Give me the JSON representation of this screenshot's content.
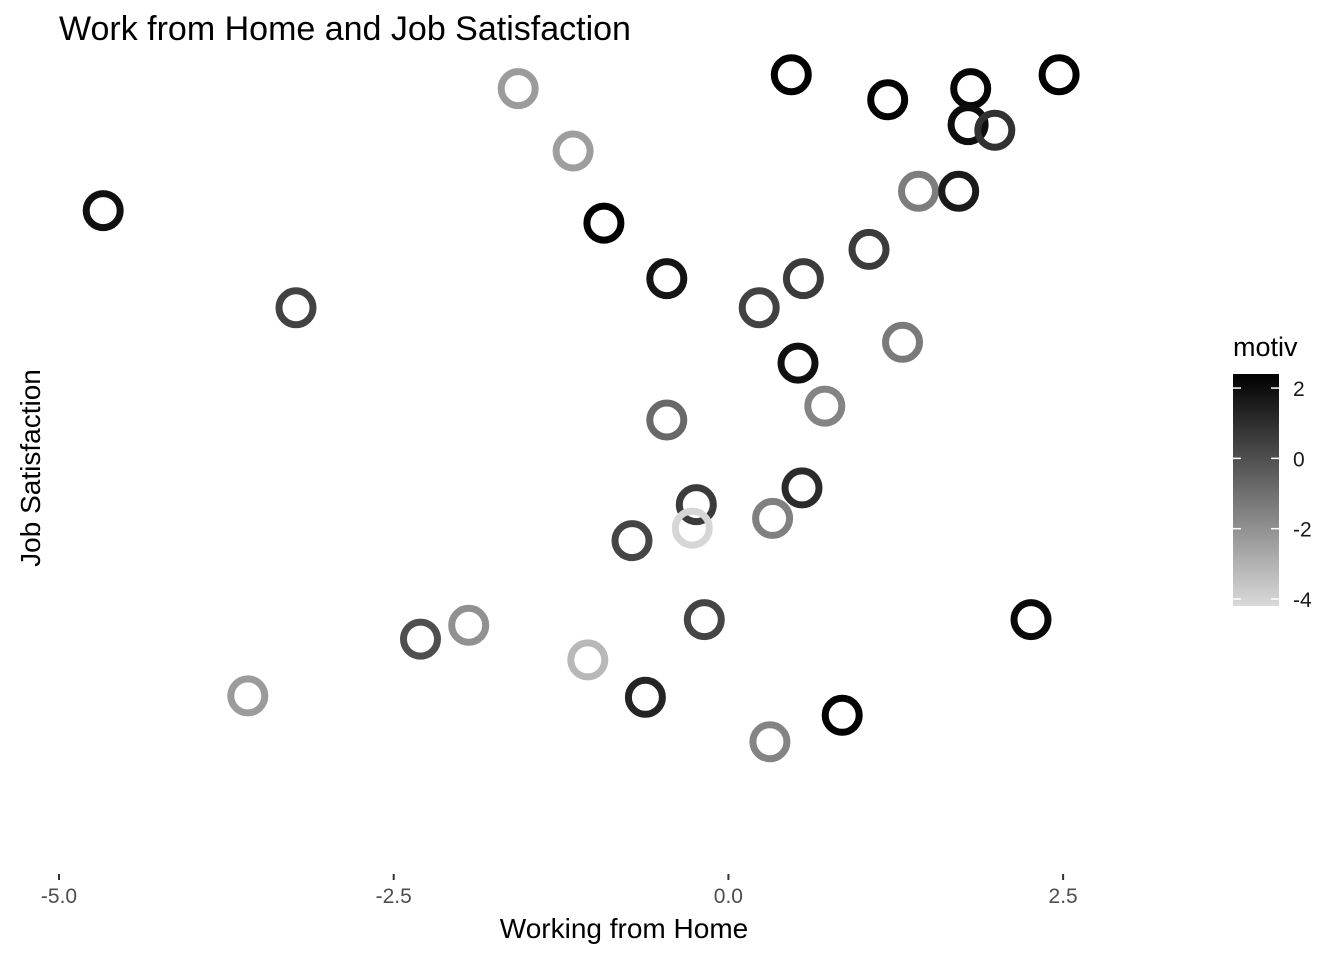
{
  "chart_data": {
    "type": "scatter",
    "title": "Work from Home and Job Satisfaction",
    "xlabel": "Working from Home",
    "ylabel": "Job Satisfaction",
    "xlim": [
      -5.0,
      3.5
    ],
    "ylim": [
      -3.45,
      2.5
    ],
    "x_ticks": [
      -5.0,
      -2.5,
      0.0,
      2.5
    ],
    "x_tick_labels": [
      "-5.0",
      "-2.5",
      "0.0",
      "2.5"
    ],
    "y_ticks_visible": false,
    "grid": false,
    "marker": "hollow-circle",
    "color_scale": {
      "name": "motiv",
      "type": "continuous",
      "domain": [
        -4.2,
        2.4
      ],
      "low_color": "#d9d9d9",
      "high_color": "#000000",
      "ticks": [
        2,
        0,
        -2,
        -4
      ],
      "tick_labels": [
        "2",
        "0",
        "-2",
        "-4"
      ],
      "legend_position": "right"
    },
    "points": [
      {
        "x": 0.47,
        "y": 2.3,
        "motiv": 2.4
      },
      {
        "x": 2.47,
        "y": 2.3,
        "motiv": 2.4
      },
      {
        "x": -1.57,
        "y": 2.2,
        "motiv": -2.3
      },
      {
        "x": 1.81,
        "y": 2.2,
        "motiv": 2.2
      },
      {
        "x": 1.19,
        "y": 2.12,
        "motiv": 2.3
      },
      {
        "x": 1.79,
        "y": 1.94,
        "motiv": 2.0
      },
      {
        "x": 1.99,
        "y": 1.9,
        "motiv": 0.9
      },
      {
        "x": -1.16,
        "y": 1.75,
        "motiv": -2.4
      },
      {
        "x": 1.42,
        "y": 1.46,
        "motiv": -1.4
      },
      {
        "x": 1.72,
        "y": 1.46,
        "motiv": 1.6
      },
      {
        "x": -4.67,
        "y": 1.32,
        "motiv": 1.9
      },
      {
        "x": -0.93,
        "y": 1.23,
        "motiv": 2.4
      },
      {
        "x": 1.05,
        "y": 1.04,
        "motiv": 0.6
      },
      {
        "x": -0.46,
        "y": 0.83,
        "motiv": 1.8
      },
      {
        "x": 0.56,
        "y": 0.83,
        "motiv": 0.6
      },
      {
        "x": -3.23,
        "y": 0.62,
        "motiv": 0.4
      },
      {
        "x": 0.23,
        "y": 0.62,
        "motiv": 0.4
      },
      {
        "x": 1.3,
        "y": 0.37,
        "motiv": -1.3
      },
      {
        "x": 0.52,
        "y": 0.22,
        "motiv": 1.9
      },
      {
        "x": 0.72,
        "y": -0.09,
        "motiv": -1.6
      },
      {
        "x": -0.46,
        "y": -0.19,
        "motiv": -0.8
      },
      {
        "x": 0.55,
        "y": -0.68,
        "motiv": 1.1
      },
      {
        "x": -0.24,
        "y": -0.8,
        "motiv": 0.6
      },
      {
        "x": 0.33,
        "y": -0.9,
        "motiv": -1.5
      },
      {
        "x": -0.27,
        "y": -0.97,
        "motiv": -4.1
      },
      {
        "x": -0.72,
        "y": -1.06,
        "motiv": 0.3
      },
      {
        "x": -0.18,
        "y": -1.63,
        "motiv": 0.3
      },
      {
        "x": 2.26,
        "y": -1.63,
        "motiv": 2.1
      },
      {
        "x": -1.94,
        "y": -1.67,
        "motiv": -2.0
      },
      {
        "x": -2.3,
        "y": -1.77,
        "motiv": 0.0
      },
      {
        "x": -1.05,
        "y": -1.92,
        "motiv": -3.2
      },
      {
        "x": -3.59,
        "y": -2.18,
        "motiv": -2.3
      },
      {
        "x": -0.62,
        "y": -2.19,
        "motiv": 1.3
      },
      {
        "x": 0.85,
        "y": -2.32,
        "motiv": 2.4
      },
      {
        "x": 0.31,
        "y": -2.51,
        "motiv": -1.6
      }
    ]
  }
}
